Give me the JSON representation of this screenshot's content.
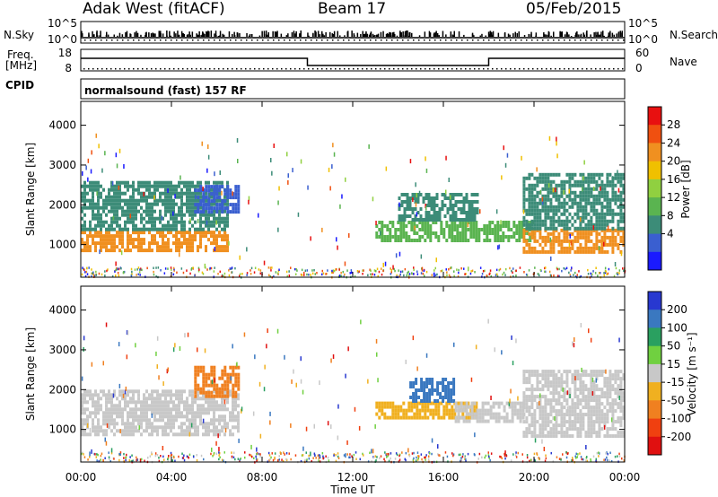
{
  "header": {
    "station": "Adak West (fitACF)",
    "beam": "Beam 17",
    "date": "05/Feb/2015"
  },
  "labels": {
    "nsky": "N.Sky",
    "nsearch": "N.Search",
    "freq_l1": "Freq.",
    "freq_l2": "[MHz]",
    "nave": "Nave",
    "cpid": "CPID",
    "mode": "normalsound (fast) 157 RF",
    "nsky_ticks": [
      "10^5",
      "10^0"
    ],
    "nsearch_ticks": [
      "10^5",
      "10^0"
    ],
    "freq_ticks": [
      "18",
      "8"
    ],
    "nave_ticks": [
      "60",
      "0"
    ]
  },
  "colors": {
    "scatter_bg": "#ffffff",
    "axis": "#000000"
  },
  "chart_data": [
    {
      "type": "heatmap",
      "panel": "power",
      "ylabel": "Slant Range [km]",
      "xlabel": "Time UT",
      "x_ticks": [
        "00:00",
        "04:00",
        "08:00",
        "12:00",
        "16:00",
        "20:00",
        "00:00"
      ],
      "y_ticks": [
        1000,
        2000,
        3000,
        4000
      ],
      "xlim": [
        0,
        24
      ],
      "ylim": [
        180,
        4600
      ],
      "colorbar": {
        "label": "Power [dB]",
        "ticks": [
          4,
          8,
          12,
          16,
          20,
          24,
          28
        ],
        "colors": [
          "#1a1aff",
          "#3a5fd0",
          "#3c8c78",
          "#5ab450",
          "#90d040",
          "#f0c000",
          "#f09020",
          "#f05010",
          "#e81010"
        ]
      },
      "regions": [
        {
          "t0": 0.0,
          "t1": 6.5,
          "r0": 850,
          "r1": 1350,
          "value": 28
        },
        {
          "t0": 0.0,
          "t1": 6.5,
          "r0": 1350,
          "r1": 2600,
          "value": 12
        },
        {
          "t0": 5.0,
          "t1": 7.0,
          "r0": 1800,
          "r1": 2500,
          "value": 6
        },
        {
          "t0": 13.0,
          "t1": 20.0,
          "r0": 1100,
          "r1": 1600,
          "value": 14
        },
        {
          "t0": 14.0,
          "t1": 17.5,
          "r0": 1600,
          "r1": 2300,
          "value": 10
        },
        {
          "t0": 19.5,
          "t1": 24.0,
          "r0": 850,
          "r1": 1400,
          "value": 26
        },
        {
          "t0": 19.5,
          "t1": 24.0,
          "r0": 1400,
          "r1": 2800,
          "value": 12
        }
      ]
    },
    {
      "type": "heatmap",
      "panel": "velocity",
      "ylabel": "Slant Range [km]",
      "xlabel": "Time UT",
      "x_ticks": [
        "00:00",
        "04:00",
        "08:00",
        "12:00",
        "16:00",
        "20:00",
        "00:00"
      ],
      "y_ticks": [
        1000,
        2000,
        3000,
        4000
      ],
      "xlim": [
        0,
        24
      ],
      "ylim": [
        180,
        4600
      ],
      "colorbar": {
        "label": "Velocity [m s⁻¹]",
        "ticks": [
          200,
          100,
          50,
          15,
          -15,
          -50,
          -100,
          -200
        ],
        "colors": [
          "#2838d0",
          "#3a78c0",
          "#2aa060",
          "#70d040",
          "#c8c8c8",
          "#f0b020",
          "#f08020",
          "#f04010",
          "#e01010"
        ]
      },
      "regions": [
        {
          "t0": 0.0,
          "t1": 7.0,
          "r0": 850,
          "r1": 2000,
          "value": 0
        },
        {
          "t0": 5.0,
          "t1": 7.0,
          "r0": 1800,
          "r1": 2600,
          "value": -60
        },
        {
          "t0": 13.0,
          "t1": 17.5,
          "r0": 1300,
          "r1": 1700,
          "value": -40
        },
        {
          "t0": 14.5,
          "t1": 16.5,
          "r0": 1700,
          "r1": 2300,
          "value": 180
        },
        {
          "t0": 16.5,
          "t1": 19.5,
          "r0": 1200,
          "r1": 1700,
          "value": 0
        },
        {
          "t0": 19.5,
          "t1": 24.0,
          "r0": 850,
          "r1": 2500,
          "value": 0
        }
      ]
    }
  ]
}
